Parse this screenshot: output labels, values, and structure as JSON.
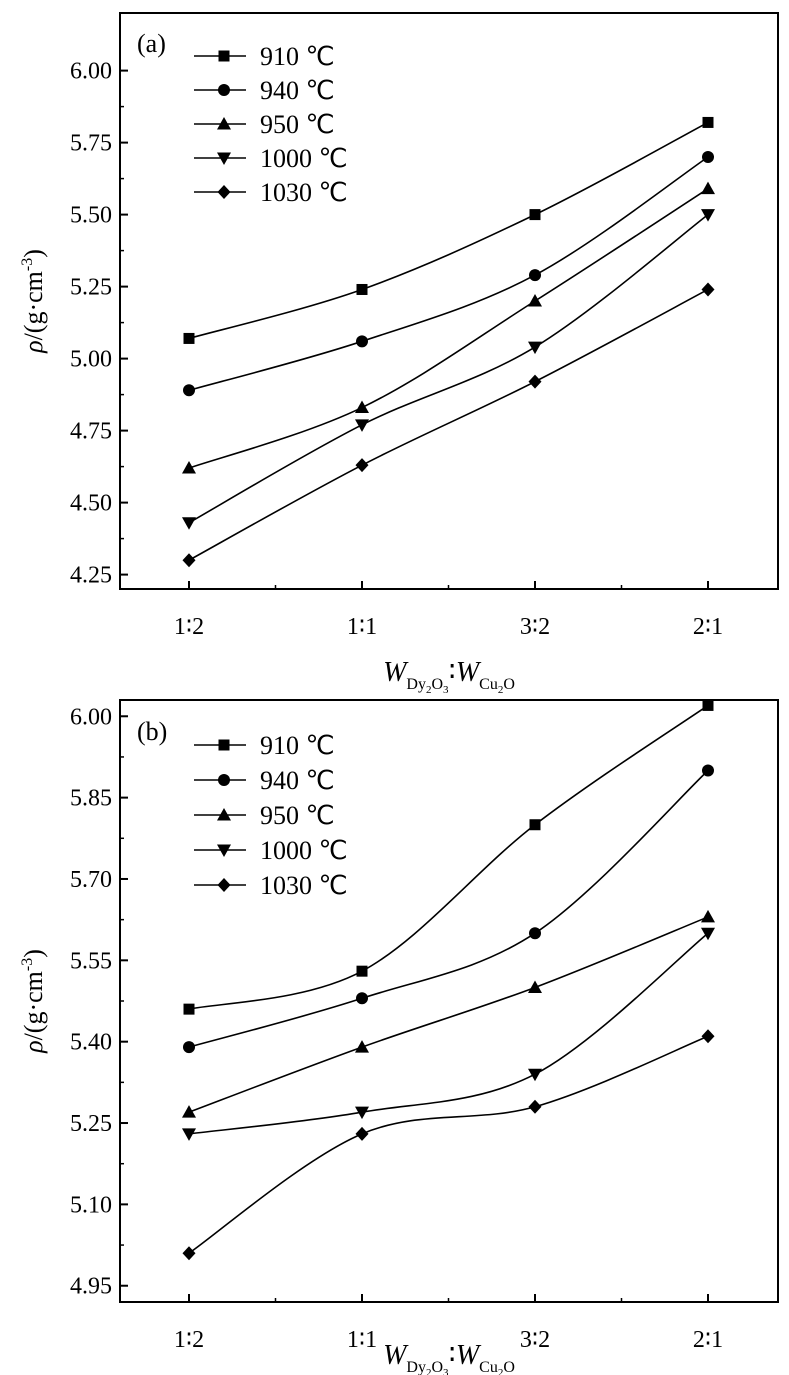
{
  "chart_data": [
    {
      "type": "line",
      "panel_label": "(a)",
      "categories": [
        "1∶2",
        "1∶1",
        "3∶2",
        "2∶1"
      ],
      "y_ticks": [
        "4.25",
        "4.50",
        "4.75",
        "5.00",
        "5.25",
        "5.50",
        "5.75",
        "6.00"
      ],
      "ylim": [
        4.2,
        6.2
      ],
      "legend_position": "top-left",
      "grid": false,
      "ylabel": {
        "rho": "ρ",
        "open": "/(g·cm",
        "exp": "-3",
        "close": ")"
      },
      "xlabel": {
        "w1": "W",
        "s1a": "Dy",
        "s1b": "2",
        "s1c": "O",
        "s1d": "3",
        "ratio": "∶",
        "w2": "W",
        "s2a": "Cu",
        "s2b": "2",
        "s2c": "O"
      },
      "series": [
        {
          "name": "910 ℃",
          "marker": "square",
          "values": [
            5.07,
            5.24,
            5.5,
            5.82
          ]
        },
        {
          "name": "940 ℃",
          "marker": "circle",
          "values": [
            4.89,
            5.06,
            5.29,
            5.7
          ]
        },
        {
          "name": "950 ℃",
          "marker": "triangle-up",
          "values": [
            4.62,
            4.83,
            5.2,
            5.59
          ]
        },
        {
          "name": "1000 ℃",
          "marker": "triangle-down",
          "values": [
            4.43,
            4.77,
            5.04,
            5.5
          ]
        },
        {
          "name": "1030 ℃",
          "marker": "diamond",
          "values": [
            4.3,
            4.63,
            4.92,
            5.24
          ]
        }
      ]
    },
    {
      "type": "line",
      "panel_label": "(b)",
      "categories": [
        "1∶2",
        "1∶1",
        "3∶2",
        "2∶1"
      ],
      "y_ticks": [
        "4.95",
        "5.10",
        "5.25",
        "5.40",
        "5.55",
        "5.70",
        "5.85",
        "6.00"
      ],
      "ylim": [
        4.92,
        6.03
      ],
      "legend_position": "top-left",
      "grid": false,
      "ylabel": {
        "rho": "ρ",
        "open": "/(g·cm",
        "exp": "-3",
        "close": ")"
      },
      "xlabel": {
        "w1": "W",
        "s1a": "Dy",
        "s1b": "2",
        "s1c": "O",
        "s1d": "3",
        "ratio": "∶",
        "w2": "W",
        "s2a": "Cu",
        "s2b": "2",
        "s2c": "O"
      },
      "series": [
        {
          "name": "910 ℃",
          "marker": "square",
          "values": [
            5.46,
            5.53,
            5.8,
            6.02
          ]
        },
        {
          "name": "940 ℃",
          "marker": "circle",
          "values": [
            5.39,
            5.48,
            5.6,
            5.9
          ]
        },
        {
          "name": "950 ℃",
          "marker": "triangle-up",
          "values": [
            5.27,
            5.39,
            5.5,
            5.63
          ]
        },
        {
          "name": "1000 ℃",
          "marker": "triangle-down",
          "values": [
            5.23,
            5.27,
            5.34,
            5.6
          ]
        },
        {
          "name": "1030 ℃",
          "marker": "diamond",
          "values": [
            5.01,
            5.23,
            5.28,
            5.41
          ]
        }
      ]
    }
  ]
}
